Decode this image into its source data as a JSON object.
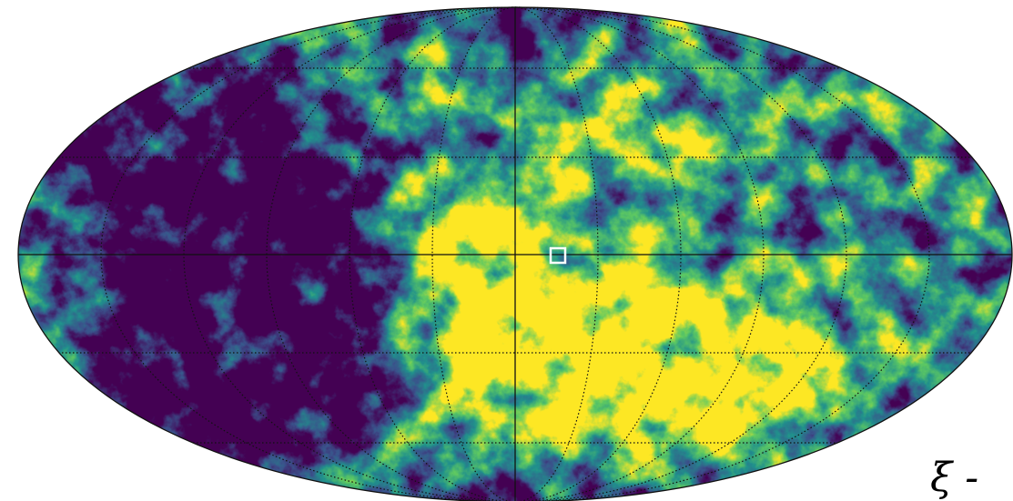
{
  "annotation": "ξ -"
}
